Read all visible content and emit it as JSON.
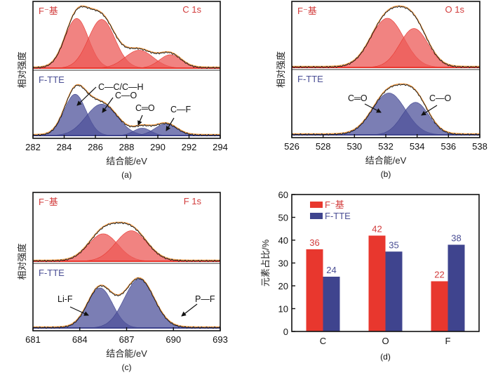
{
  "colors": {
    "red": "#e8372e",
    "red_fill": "#ec5a57",
    "blue": "#3f448e",
    "blue_fill": "#4f539b",
    "fit_line": "#f0a050",
    "raw_line": "#111111",
    "red_text": "#d23b3b",
    "blue_text": "#4a4e94"
  },
  "chart_data": [
    {
      "id": "a",
      "type": "area",
      "panel_label": "(a)",
      "title": "C 1s",
      "xlabel": "结合能/eV",
      "ylabel": "相对强度",
      "xlim": [
        282,
        294
      ],
      "xticks": [
        282,
        284,
        286,
        288,
        290,
        292,
        294
      ],
      "grid": false,
      "series": [
        {
          "name": "F⁻基",
          "color": "red",
          "peaks": [
            {
              "center": 284.8,
              "height": 1.0,
              "sigma": 0.75
            },
            {
              "center": 286.4,
              "height": 0.98,
              "sigma": 0.85
            },
            {
              "center": 288.8,
              "height": 0.36,
              "sigma": 0.9
            },
            {
              "center": 290.8,
              "height": 0.27,
              "sigma": 0.7
            }
          ]
        },
        {
          "name": "F-TTE",
          "color": "blue",
          "peaks": [
            {
              "center": 284.7,
              "height": 1.0,
              "sigma": 0.7,
              "label": "C—C/C—H"
            },
            {
              "center": 286.4,
              "height": 0.76,
              "sigma": 1.0,
              "label": "C—O"
            },
            {
              "center": 289.0,
              "height": 0.18,
              "sigma": 0.55,
              "label": "C═O"
            },
            {
              "center": 290.5,
              "height": 0.28,
              "sigma": 0.7,
              "label": "C—F"
            }
          ]
        }
      ]
    },
    {
      "id": "b",
      "type": "area",
      "panel_label": "(b)",
      "title": "O 1s",
      "xlabel": "结合能/eV",
      "ylabel": "相对强度",
      "xlim": [
        526,
        538
      ],
      "xticks": [
        526,
        528,
        530,
        532,
        534,
        536,
        538
      ],
      "grid": false,
      "series": [
        {
          "name": "F⁻基",
          "color": "red",
          "peaks": [
            {
              "center": 532.1,
              "height": 0.82,
              "sigma": 1.05
            },
            {
              "center": 533.8,
              "height": 0.65,
              "sigma": 0.9
            }
          ]
        },
        {
          "name": "F-TTE",
          "color": "blue",
          "peaks": [
            {
              "center": 532.2,
              "height": 0.85,
              "sigma": 1.05,
              "label": "C═O"
            },
            {
              "center": 533.9,
              "height": 0.66,
              "sigma": 0.85,
              "label": "C—O"
            }
          ]
        }
      ]
    },
    {
      "id": "c",
      "type": "area",
      "panel_label": "(c)",
      "title": "F 1s",
      "xlabel": "结合能/eV",
      "ylabel": "相对强度",
      "xlim": [
        681,
        693
      ],
      "xticks": [
        681,
        684,
        687,
        690,
        693
      ],
      "grid": false,
      "series": [
        {
          "name": "F⁻基",
          "color": "red",
          "peaks": [
            {
              "center": 685.5,
              "height": 0.45,
              "sigma": 0.95
            },
            {
              "center": 687.3,
              "height": 0.5,
              "sigma": 1.0
            }
          ]
        },
        {
          "name": "F-TTE",
          "color": "blue",
          "peaks": [
            {
              "center": 685.3,
              "height": 0.82,
              "sigma": 0.8,
              "label": "Li-F"
            },
            {
              "center": 687.8,
              "height": 1.0,
              "sigma": 0.95,
              "label": "P—F"
            }
          ]
        }
      ]
    },
    {
      "id": "d",
      "type": "bar",
      "panel_label": "(d)",
      "title": "",
      "xlabel": "",
      "ylabel": "元素占比/%",
      "categories": [
        "C",
        "O",
        "F"
      ],
      "ylim": [
        0,
        60
      ],
      "yticks": [
        0,
        10,
        20,
        30,
        40,
        50,
        60
      ],
      "grid": false,
      "legend_position": "top-left",
      "series": [
        {
          "name": "F⁻基",
          "color": "red",
          "values": [
            36,
            42,
            22
          ]
        },
        {
          "name": "F-TTE",
          "color": "blue",
          "values": [
            24,
            35,
            38
          ]
        }
      ]
    }
  ]
}
